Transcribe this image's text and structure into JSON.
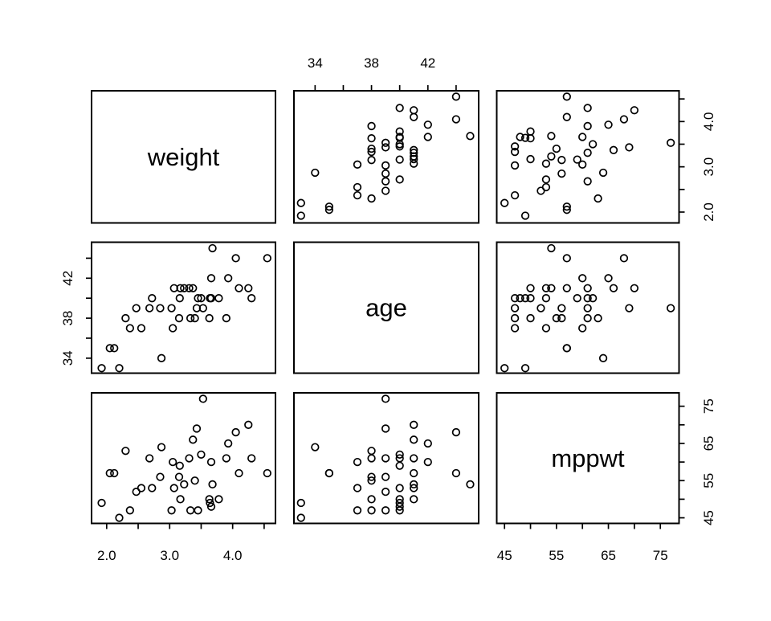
{
  "figure": {
    "background": "#ffffff",
    "stroke_color": "#000000",
    "marker": "open-circle"
  },
  "chart_data": {
    "type": "scatter-matrix",
    "title": "",
    "grid": false,
    "legend": null,
    "variables": [
      {
        "name": "weight",
        "domain": [
          1.76,
          4.68
        ],
        "ticks": [
          2.0,
          2.5,
          3.0,
          3.5,
          4.0,
          4.5
        ],
        "labeled_ticks": [
          {
            "v": 2.0,
            "t": "2.0"
          },
          {
            "v": 3.0,
            "t": "3.0"
          },
          {
            "v": 4.0,
            "t": "4.0"
          }
        ],
        "column_axis_side": "bottom",
        "row_axis_side": "right"
      },
      {
        "name": "age",
        "domain": [
          32.5,
          45.6
        ],
        "ticks": [
          34,
          36,
          38,
          40,
          42,
          44
        ],
        "labeled_ticks": [
          {
            "v": 34,
            "t": "34"
          },
          {
            "v": 38,
            "t": "38"
          },
          {
            "v": 42,
            "t": "42"
          }
        ],
        "column_axis_side": "top",
        "row_axis_side": "left"
      },
      {
        "name": "mppwt",
        "domain": [
          43.5,
          78.6
        ],
        "ticks": [
          45,
          50,
          55,
          60,
          65,
          70,
          75
        ],
        "labeled_ticks": [
          {
            "v": 45,
            "t": "45"
          },
          {
            "v": 55,
            "t": "55"
          },
          {
            "v": 65,
            "t": "65"
          },
          {
            "v": 75,
            "t": "75"
          }
        ],
        "column_axis_side": "bottom",
        "row_axis_side": "right"
      }
    ],
    "points": [
      [
        1.92,
        33,
        49
      ],
      [
        2.2,
        33,
        45
      ],
      [
        2.87,
        34,
        64
      ],
      [
        2.05,
        35,
        57
      ],
      [
        2.12,
        35,
        57
      ],
      [
        2.37,
        37,
        47
      ],
      [
        2.55,
        37,
        53
      ],
      [
        3.05,
        37,
        60
      ],
      [
        2.3,
        38,
        63
      ],
      [
        3.15,
        38,
        56
      ],
      [
        3.33,
        38,
        47
      ],
      [
        3.4,
        38,
        55
      ],
      [
        3.63,
        38,
        50
      ],
      [
        3.9,
        38,
        61
      ],
      [
        2.47,
        39,
        52
      ],
      [
        2.68,
        39,
        61
      ],
      [
        2.85,
        39,
        56
      ],
      [
        3.03,
        39,
        47
      ],
      [
        3.43,
        39,
        69
      ],
      [
        3.53,
        39,
        77
      ],
      [
        2.72,
        40,
        53
      ],
      [
        3.16,
        40,
        59
      ],
      [
        3.45,
        40,
        47
      ],
      [
        3.5,
        40,
        62
      ],
      [
        3.64,
        40,
        49
      ],
      [
        3.66,
        40,
        48
      ],
      [
        3.78,
        40,
        50
      ],
      [
        4.3,
        40,
        61
      ],
      [
        3.07,
        41,
        53
      ],
      [
        3.17,
        41,
        50
      ],
      [
        3.23,
        41,
        54
      ],
      [
        3.31,
        41,
        61
      ],
      [
        3.37,
        41,
        66
      ],
      [
        4.1,
        41,
        57
      ],
      [
        4.25,
        41,
        70
      ],
      [
        3.66,
        42,
        60
      ],
      [
        3.93,
        42,
        65
      ],
      [
        4.05,
        44,
        68
      ],
      [
        4.55,
        44,
        57
      ],
      [
        3.68,
        45,
        54
      ]
    ]
  }
}
